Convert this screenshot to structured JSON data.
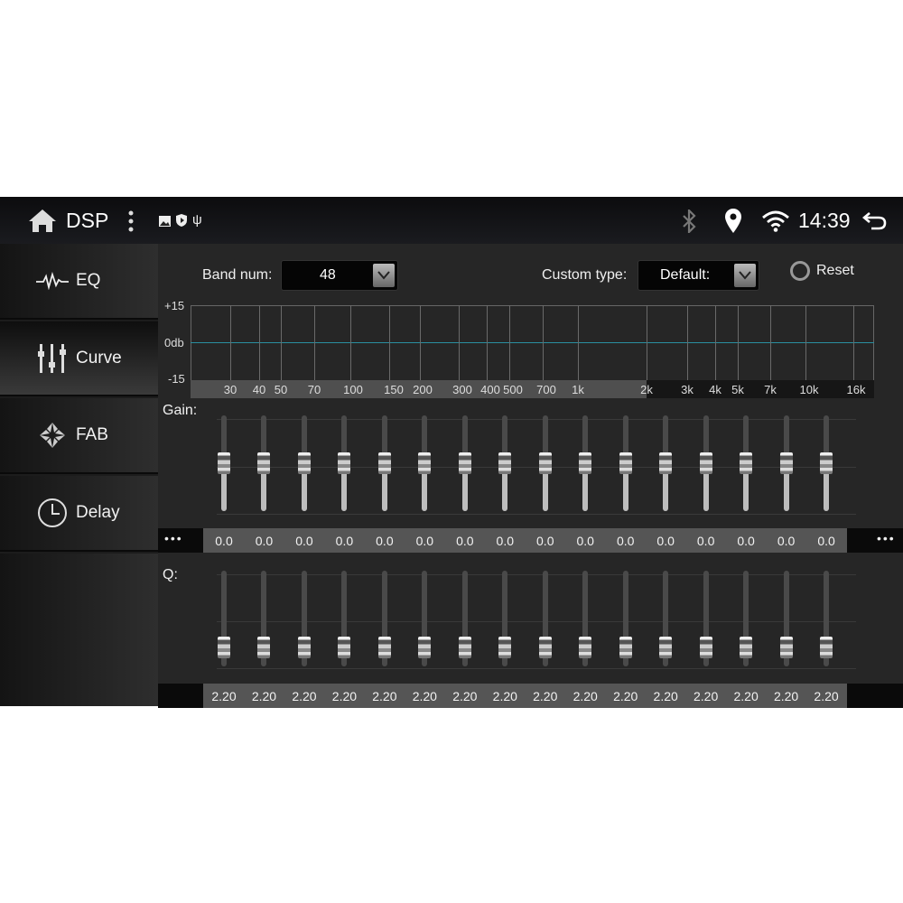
{
  "status_bar": {
    "title": "DSP",
    "time": "14:39",
    "icons": [
      "home-icon",
      "more-vert-icon",
      "image-icon",
      "shield-icon",
      "usb-icon",
      "bluetooth-icon",
      "location-icon",
      "wifi-icon",
      "back-icon"
    ]
  },
  "sidebar": {
    "items": [
      {
        "label": "EQ",
        "icon": "waveform-icon",
        "selected": false
      },
      {
        "label": "Curve",
        "icon": "sliders-icon",
        "selected": true
      },
      {
        "label": "FAB",
        "icon": "fader-balance-icon",
        "selected": false
      },
      {
        "label": "Delay",
        "icon": "clock-icon",
        "selected": false
      }
    ]
  },
  "controls": {
    "band_num_label": "Band num:",
    "band_num_value": "48",
    "custom_type_label": "Custom type:",
    "custom_type_value": "Default:",
    "reset_label": "Reset"
  },
  "curve_chart": {
    "y_labels": [
      "+15",
      "0db",
      "-15"
    ],
    "freq_labels": [
      "30",
      "40",
      "50",
      "70",
      "100",
      "150",
      "200",
      "300",
      "400",
      "500",
      "700",
      "1k",
      "2k",
      "3k",
      "4k",
      "5k",
      "7k",
      "10k",
      "16k"
    ],
    "curve_color": "#2a8fa0"
  },
  "gain": {
    "label": "Gain:",
    "more": "•••",
    "values": [
      "0.0",
      "0.0",
      "0.0",
      "0.0",
      "0.0",
      "0.0",
      "0.0",
      "0.0",
      "0.0",
      "0.0",
      "0.0",
      "0.0",
      "0.0",
      "0.0",
      "0.0",
      "0.0"
    ]
  },
  "q": {
    "label": "Q:",
    "values": [
      "2.20",
      "2.20",
      "2.20",
      "2.20",
      "2.20",
      "2.20",
      "2.20",
      "2.20",
      "2.20",
      "2.20",
      "2.20",
      "2.20",
      "2.20",
      "2.20",
      "2.20",
      "2.20"
    ]
  }
}
